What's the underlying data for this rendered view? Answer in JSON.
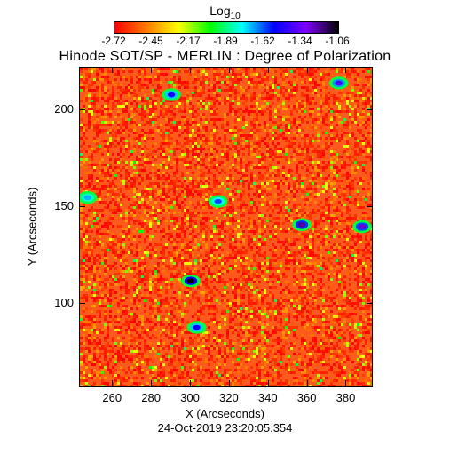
{
  "chart_data": {
    "type": "heatmap",
    "title": "Hinode SOT/SP - MERLIN : Degree of Polarization",
    "colorbar": {
      "label": "Log",
      "label_subscript": "10",
      "ticks": [
        "-2.72",
        "-2.45",
        "-2.17",
        "-1.89",
        "-1.62",
        "-1.34",
        "-1.06"
      ],
      "range": [
        -2.72,
        -1.06
      ],
      "colors": [
        "#ff0000",
        "#ff7a00",
        "#ffff00",
        "#00ff00",
        "#00ffff",
        "#0000ff",
        "#7f00ff",
        "#000000"
      ]
    },
    "xlabel": "X (Arcseconds)",
    "ylabel": "Y (Arcseconds)",
    "xlim": [
      243,
      393
    ],
    "ylim": [
      58,
      222
    ],
    "xticks": [
      "260",
      "280",
      "300",
      "320",
      "340",
      "360",
      "380"
    ],
    "yticks": [
      "100",
      "150",
      "200"
    ],
    "features": [
      {
        "x": 300,
        "y": 112,
        "value": -1.06
      },
      {
        "x": 357,
        "y": 141,
        "value": -1.2
      },
      {
        "x": 388,
        "y": 140,
        "value": -1.25
      },
      {
        "x": 247,
        "y": 155,
        "value": -1.7
      },
      {
        "x": 290,
        "y": 208,
        "value": -1.5
      },
      {
        "x": 376,
        "y": 214,
        "value": -1.4
      },
      {
        "x": 303,
        "y": 88,
        "value": -1.5
      },
      {
        "x": 314,
        "y": 153,
        "value": -1.6
      }
    ],
    "timestamp": "24-Oct-2019 23:20:05.354"
  }
}
